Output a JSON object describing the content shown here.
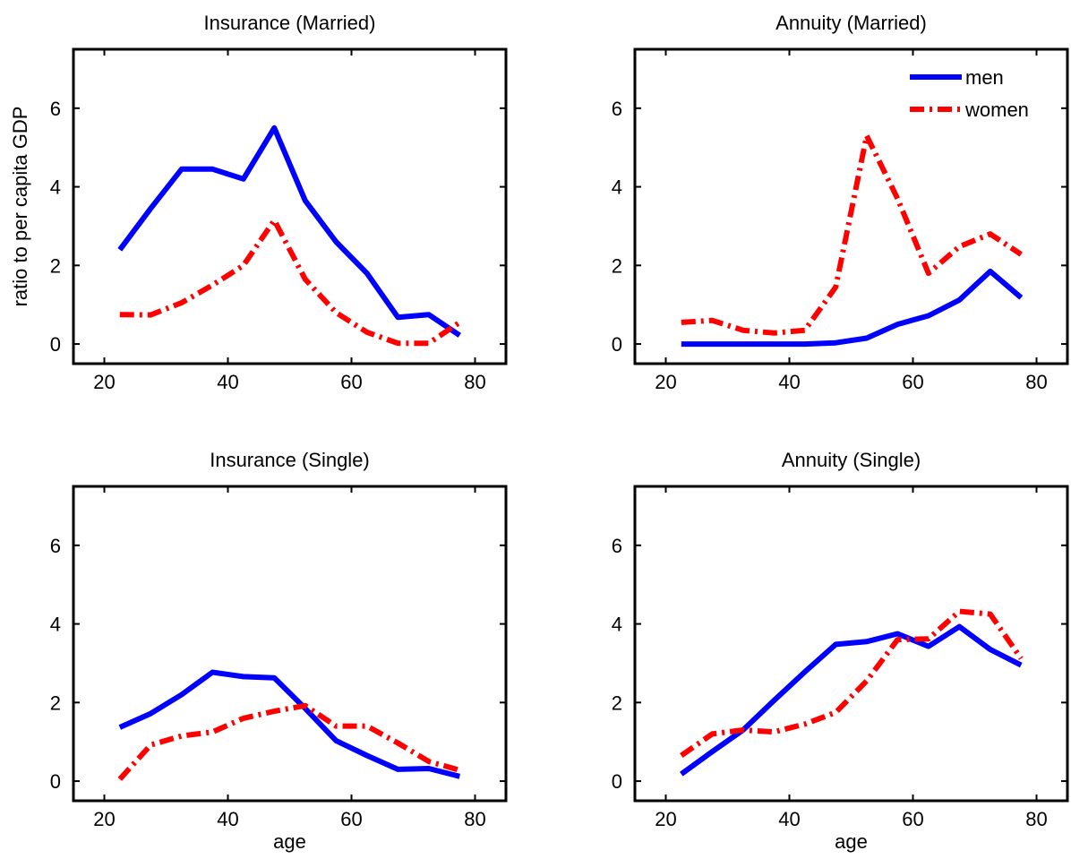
{
  "figure": {
    "background": "#ffffff"
  },
  "chart_data": [
    {
      "type": "line",
      "title": "Insurance (Married)",
      "xlabel": "",
      "ylabel": "ratio to per capita GDP",
      "xlim": [
        15,
        85
      ],
      "ylim": [
        -0.5,
        7.5
      ],
      "xticks": [
        20,
        40,
        60,
        80
      ],
      "yticks": [
        0,
        2,
        4,
        6
      ],
      "legend": null,
      "x": [
        22.5,
        27.5,
        32.5,
        37.5,
        42.5,
        47.5,
        52.5,
        57.5,
        62.5,
        67.5,
        72.5,
        77.5
      ],
      "series": [
        {
          "name": "men",
          "color": "#0000ff",
          "style": "solid",
          "values": [
            2.4,
            3.45,
            4.45,
            4.45,
            4.2,
            5.5,
            3.65,
            2.6,
            1.8,
            0.68,
            0.75,
            0.22
          ]
        },
        {
          "name": "women",
          "color": "#ff0000",
          "style": "dashdot",
          "values": [
            0.75,
            0.74,
            1.05,
            1.5,
            2.0,
            3.15,
            1.65,
            0.8,
            0.3,
            0.02,
            0.02,
            0.55
          ]
        }
      ]
    },
    {
      "type": "line",
      "title": "Annuity (Married)",
      "xlabel": "",
      "ylabel": "",
      "xlim": [
        15,
        85
      ],
      "ylim": [
        -0.5,
        7.5
      ],
      "xticks": [
        20,
        40,
        60,
        80
      ],
      "yticks": [
        0,
        2,
        4,
        6
      ],
      "legend": {
        "position": "top-right",
        "entries": [
          "men",
          "women"
        ]
      },
      "x": [
        22.5,
        27.5,
        32.5,
        37.5,
        42.5,
        47.5,
        52.5,
        57.5,
        62.5,
        67.5,
        72.5,
        77.5
      ],
      "series": [
        {
          "name": "men",
          "color": "#0000ff",
          "style": "solid",
          "values": [
            0.0,
            0.0,
            0.0,
            0.0,
            0.0,
            0.03,
            0.15,
            0.5,
            0.72,
            1.12,
            1.85,
            1.18
          ]
        },
        {
          "name": "women",
          "color": "#ff0000",
          "style": "dashdot",
          "values": [
            0.55,
            0.6,
            0.35,
            0.28,
            0.35,
            1.45,
            5.3,
            3.7,
            1.8,
            2.48,
            2.8,
            2.28
          ]
        }
      ]
    },
    {
      "type": "line",
      "title": "Insurance (Single)",
      "xlabel": "age",
      "ylabel": "",
      "xlim": [
        15,
        85
      ],
      "ylim": [
        -0.5,
        7.5
      ],
      "xticks": [
        20,
        40,
        60,
        80
      ],
      "yticks": [
        0,
        2,
        4,
        6
      ],
      "legend": null,
      "x": [
        22.5,
        27.5,
        32.5,
        37.5,
        42.5,
        47.5,
        52.5,
        57.5,
        62.5,
        67.5,
        72.5,
        77.5
      ],
      "series": [
        {
          "name": "men",
          "color": "#0000ff",
          "style": "solid",
          "values": [
            1.37,
            1.72,
            2.2,
            2.77,
            2.66,
            2.63,
            1.85,
            1.03,
            0.65,
            0.3,
            0.32,
            0.12
          ]
        },
        {
          "name": "women",
          "color": "#ff0000",
          "style": "dashdot",
          "values": [
            0.05,
            0.92,
            1.15,
            1.25,
            1.6,
            1.78,
            1.92,
            1.4,
            1.4,
            0.97,
            0.5,
            0.28
          ]
        }
      ]
    },
    {
      "type": "line",
      "title": "Annuity (Single)",
      "xlabel": "age",
      "ylabel": "",
      "xlim": [
        15,
        85
      ],
      "ylim": [
        -0.5,
        7.5
      ],
      "xticks": [
        20,
        40,
        60,
        80
      ],
      "yticks": [
        0,
        2,
        4,
        6
      ],
      "legend": null,
      "x": [
        22.5,
        27.5,
        32.5,
        37.5,
        42.5,
        47.5,
        52.5,
        57.5,
        62.5,
        67.5,
        72.5,
        77.5
      ],
      "series": [
        {
          "name": "men",
          "color": "#0000ff",
          "style": "solid",
          "values": [
            0.18,
            0.75,
            1.3,
            2.05,
            2.78,
            3.48,
            3.55,
            3.75,
            3.43,
            3.93,
            3.35,
            2.95
          ]
        },
        {
          "name": "women",
          "color": "#ff0000",
          "style": "dashdot",
          "values": [
            0.65,
            1.2,
            1.3,
            1.25,
            1.45,
            1.75,
            2.55,
            3.6,
            3.62,
            4.32,
            4.25,
            3.12
          ]
        }
      ]
    }
  ]
}
